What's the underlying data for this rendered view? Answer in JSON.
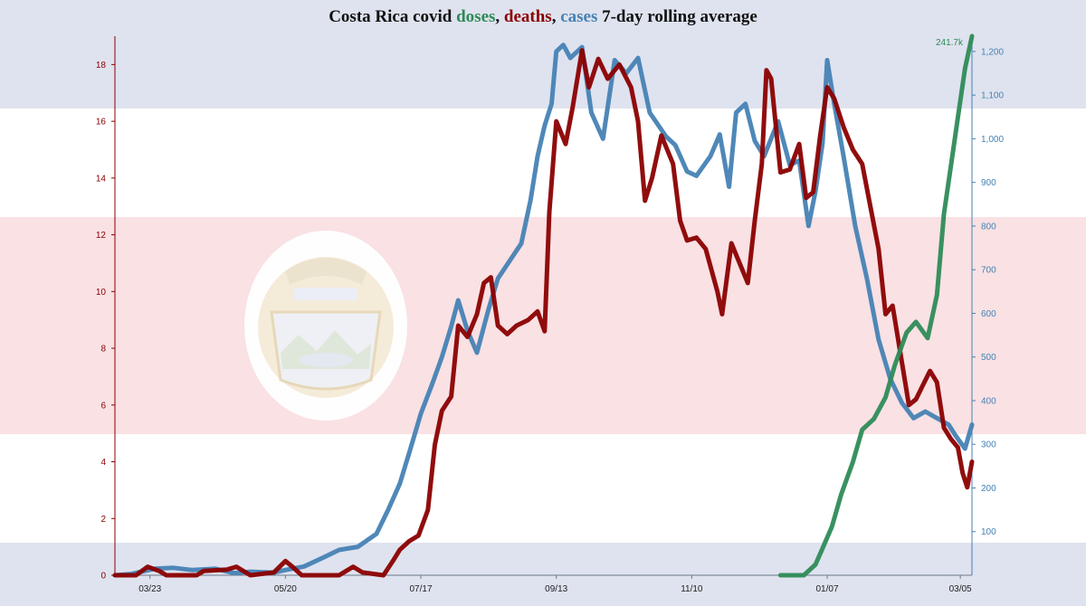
{
  "title": {
    "prefix": "Costa Rica covid ",
    "doses": "doses",
    "sep1": ", ",
    "deaths": "deaths",
    "sep2": ", ",
    "cases": "cases",
    "suffix": " 7-day rolling average"
  },
  "colors": {
    "doses": "#2e8b57",
    "deaths": "#8b0000",
    "cases": "#4682b4",
    "flag_blue": "#dfe3ef",
    "flag_red": "#f9e1e4"
  },
  "chart_data": {
    "type": "line",
    "title": "Costa Rica covid doses, deaths, cases 7-day rolling average",
    "x_range": [
      "2020-03-08",
      "2021-03-10"
    ],
    "x_ticks": [
      {
        "date": "2020-03-23",
        "label": "03/23"
      },
      {
        "date": "2020-05-20",
        "label": "05/20"
      },
      {
        "date": "2020-07-17",
        "label": "07/17"
      },
      {
        "date": "2020-09-13",
        "label": "09/13"
      },
      {
        "date": "2020-11-10",
        "label": "11/10"
      },
      {
        "date": "2021-01-07",
        "label": "01/07"
      },
      {
        "date": "2021-03-05",
        "label": "03/05"
      }
    ],
    "left_axis": {
      "series": "deaths",
      "range": [
        0,
        19
      ],
      "ticks": [
        0,
        2,
        4,
        6,
        8,
        10,
        12,
        14,
        16,
        18
      ]
    },
    "right_axis": {
      "series": "cases",
      "range": [
        0,
        1235
      ],
      "ticks": [
        {
          "v": 100,
          "label": "100"
        },
        {
          "v": 200,
          "label": "200"
        },
        {
          "v": 300,
          "label": "300"
        },
        {
          "v": 400,
          "label": "400"
        },
        {
          "v": 500,
          "label": "500"
        },
        {
          "v": 600,
          "label": "600"
        },
        {
          "v": 700,
          "label": "700"
        },
        {
          "v": 800,
          "label": "800"
        },
        {
          "v": 900,
          "label": "900"
        },
        {
          "v": 1000,
          "label": "1,000"
        },
        {
          "v": 1100,
          "label": "1,100"
        },
        {
          "v": 1200,
          "label": "1,200"
        }
      ]
    },
    "doses_max_label": "241.7k",
    "grid": false,
    "series": [
      {
        "name": "cases",
        "axis": "right",
        "points": [
          [
            "2020-03-08",
            0
          ],
          [
            "2020-03-15",
            3
          ],
          [
            "2020-03-25",
            15
          ],
          [
            "2020-04-02",
            17
          ],
          [
            "2020-04-10",
            12
          ],
          [
            "2020-04-20",
            15
          ],
          [
            "2020-04-28",
            5
          ],
          [
            "2020-05-05",
            8
          ],
          [
            "2020-05-15",
            6
          ],
          [
            "2020-05-20",
            12
          ],
          [
            "2020-05-28",
            20
          ],
          [
            "2020-06-05",
            40
          ],
          [
            "2020-06-12",
            58
          ],
          [
            "2020-06-20",
            65
          ],
          [
            "2020-06-28",
            95
          ],
          [
            "2020-07-03",
            150
          ],
          [
            "2020-07-08",
            210
          ],
          [
            "2020-07-12",
            280
          ],
          [
            "2020-07-17",
            370
          ],
          [
            "2020-07-22",
            440
          ],
          [
            "2020-07-26",
            500
          ],
          [
            "2020-07-30",
            570
          ],
          [
            "2020-08-02",
            630
          ],
          [
            "2020-08-06",
            560
          ],
          [
            "2020-08-10",
            510
          ],
          [
            "2020-08-15",
            610
          ],
          [
            "2020-08-19",
            680
          ],
          [
            "2020-08-24",
            720
          ],
          [
            "2020-08-29",
            760
          ],
          [
            "2020-09-02",
            860
          ],
          [
            "2020-09-05",
            960
          ],
          [
            "2020-09-08",
            1030
          ],
          [
            "2020-09-11",
            1080
          ],
          [
            "2020-09-13",
            1200
          ],
          [
            "2020-09-16",
            1215
          ],
          [
            "2020-09-19",
            1185
          ],
          [
            "2020-09-24",
            1210
          ],
          [
            "2020-09-28",
            1060
          ],
          [
            "2020-10-03",
            1000
          ],
          [
            "2020-10-08",
            1180
          ],
          [
            "2020-10-13",
            1150
          ],
          [
            "2020-10-18",
            1185
          ],
          [
            "2020-10-23",
            1060
          ],
          [
            "2020-10-30",
            1005
          ],
          [
            "2020-11-03",
            985
          ],
          [
            "2020-11-08",
            925
          ],
          [
            "2020-11-12",
            915
          ],
          [
            "2020-11-18",
            960
          ],
          [
            "2020-11-22",
            1010
          ],
          [
            "2020-11-26",
            890
          ],
          [
            "2020-11-29",
            1060
          ],
          [
            "2020-12-03",
            1080
          ],
          [
            "2020-12-07",
            995
          ],
          [
            "2020-12-11",
            960
          ],
          [
            "2020-12-17",
            1040
          ],
          [
            "2020-12-22",
            940
          ],
          [
            "2020-12-26",
            950
          ],
          [
            "2020-12-30",
            800
          ],
          [
            "2021-01-02",
            880
          ],
          [
            "2021-01-05",
            990
          ],
          [
            "2021-01-07",
            1180
          ],
          [
            "2021-01-10",
            1080
          ],
          [
            "2021-01-14",
            960
          ],
          [
            "2021-01-19",
            800
          ],
          [
            "2021-01-24",
            680
          ],
          [
            "2021-01-29",
            540
          ],
          [
            "2021-02-03",
            450
          ],
          [
            "2021-02-08",
            395
          ],
          [
            "2021-02-13",
            360
          ],
          [
            "2021-02-18",
            375
          ],
          [
            "2021-02-23",
            360
          ],
          [
            "2021-02-28",
            345
          ],
          [
            "2021-03-03",
            320
          ],
          [
            "2021-03-07",
            290
          ],
          [
            "2021-03-10",
            345
          ]
        ]
      },
      {
        "name": "deaths",
        "axis": "left",
        "points": [
          [
            "2020-03-08",
            0
          ],
          [
            "2020-03-17",
            0
          ],
          [
            "2020-03-22",
            0.3
          ],
          [
            "2020-03-27",
            0.15
          ],
          [
            "2020-03-30",
            0
          ],
          [
            "2020-04-12",
            0
          ],
          [
            "2020-04-15",
            0.15
          ],
          [
            "2020-04-25",
            0.2
          ],
          [
            "2020-04-29",
            0.3
          ],
          [
            "2020-05-05",
            0
          ],
          [
            "2020-05-15",
            0.1
          ],
          [
            "2020-05-20",
            0.5
          ],
          [
            "2020-05-23",
            0.3
          ],
          [
            "2020-05-27",
            0
          ],
          [
            "2020-06-12",
            0
          ],
          [
            "2020-06-18",
            0.3
          ],
          [
            "2020-06-22",
            0.1
          ],
          [
            "2020-07-01",
            0
          ],
          [
            "2020-07-05",
            0.5
          ],
          [
            "2020-07-08",
            0.9
          ],
          [
            "2020-07-12",
            1.2
          ],
          [
            "2020-07-16",
            1.4
          ],
          [
            "2020-07-20",
            2.3
          ],
          [
            "2020-07-23",
            4.6
          ],
          [
            "2020-07-26",
            5.8
          ],
          [
            "2020-07-30",
            6.3
          ],
          [
            "2020-08-02",
            8.8
          ],
          [
            "2020-08-06",
            8.4
          ],
          [
            "2020-08-10",
            9.2
          ],
          [
            "2020-08-13",
            10.3
          ],
          [
            "2020-08-16",
            10.5
          ],
          [
            "2020-08-19",
            8.8
          ],
          [
            "2020-08-23",
            8.5
          ],
          [
            "2020-08-27",
            8.8
          ],
          [
            "2020-09-01",
            9.0
          ],
          [
            "2020-09-05",
            9.3
          ],
          [
            "2020-09-08",
            8.6
          ],
          [
            "2020-09-10",
            12.8
          ],
          [
            "2020-09-13",
            16.0
          ],
          [
            "2020-09-17",
            15.2
          ],
          [
            "2020-09-20",
            16.5
          ],
          [
            "2020-09-24",
            18.5
          ],
          [
            "2020-09-27",
            17.2
          ],
          [
            "2020-10-01",
            18.2
          ],
          [
            "2020-10-05",
            17.5
          ],
          [
            "2020-10-10",
            18.0
          ],
          [
            "2020-10-15",
            17.2
          ],
          [
            "2020-10-18",
            16.0
          ],
          [
            "2020-10-21",
            13.2
          ],
          [
            "2020-10-24",
            14.0
          ],
          [
            "2020-10-28",
            15.5
          ],
          [
            "2020-11-02",
            14.5
          ],
          [
            "2020-11-05",
            12.5
          ],
          [
            "2020-11-08",
            11.8
          ],
          [
            "2020-11-12",
            11.9
          ],
          [
            "2020-11-16",
            11.5
          ],
          [
            "2020-11-21",
            10.0
          ],
          [
            "2020-11-23",
            9.2
          ],
          [
            "2020-11-27",
            11.7
          ],
          [
            "2020-12-01",
            10.9
          ],
          [
            "2020-12-04",
            10.3
          ],
          [
            "2020-12-07",
            12.5
          ],
          [
            "2020-12-10",
            14.5
          ],
          [
            "2020-12-12",
            17.8
          ],
          [
            "2020-12-14",
            17.5
          ],
          [
            "2020-12-18",
            14.2
          ],
          [
            "2020-12-22",
            14.3
          ],
          [
            "2020-12-26",
            15.2
          ],
          [
            "2020-12-29",
            13.3
          ],
          [
            "2021-01-01",
            13.5
          ],
          [
            "2021-01-04",
            15.5
          ],
          [
            "2021-01-07",
            17.2
          ],
          [
            "2021-01-10",
            16.8
          ],
          [
            "2021-01-14",
            15.8
          ],
          [
            "2021-01-18",
            15.0
          ],
          [
            "2021-01-22",
            14.5
          ],
          [
            "2021-01-25",
            13.2
          ],
          [
            "2021-01-29",
            11.5
          ],
          [
            "2021-02-01",
            9.2
          ],
          [
            "2021-02-04",
            9.5
          ],
          [
            "2021-02-08",
            7.5
          ],
          [
            "2021-02-11",
            6.0
          ],
          [
            "2021-02-14",
            6.2
          ],
          [
            "2021-02-17",
            6.7
          ],
          [
            "2021-02-20",
            7.2
          ],
          [
            "2021-02-23",
            6.8
          ],
          [
            "2021-02-26",
            5.2
          ],
          [
            "2021-03-01",
            4.8
          ],
          [
            "2021-03-04",
            4.5
          ],
          [
            "2021-03-06",
            3.6
          ],
          [
            "2021-03-08",
            3.1
          ],
          [
            "2021-03-10",
            4.0
          ]
        ]
      },
      {
        "name": "doses",
        "axis": "doses",
        "points": [
          [
            "2020-12-18",
            0
          ],
          [
            "2020-12-28",
            0
          ],
          [
            "2021-01-02",
            0.02
          ],
          [
            "2021-01-05",
            0.05
          ],
          [
            "2021-01-09",
            0.09
          ],
          [
            "2021-01-13",
            0.15
          ],
          [
            "2021-01-18",
            0.21
          ],
          [
            "2021-01-22",
            0.27
          ],
          [
            "2021-01-27",
            0.29
          ],
          [
            "2021-02-01",
            0.33
          ],
          [
            "2021-02-05",
            0.39
          ],
          [
            "2021-02-10",
            0.45
          ],
          [
            "2021-02-14",
            0.47
          ],
          [
            "2021-02-19",
            0.44
          ],
          [
            "2021-02-23",
            0.52
          ],
          [
            "2021-02-26",
            0.67
          ],
          [
            "2021-03-01",
            0.76
          ],
          [
            "2021-03-04",
            0.85
          ],
          [
            "2021-03-07",
            0.94
          ],
          [
            "2021-03-10",
            1.0
          ]
        ]
      }
    ]
  }
}
